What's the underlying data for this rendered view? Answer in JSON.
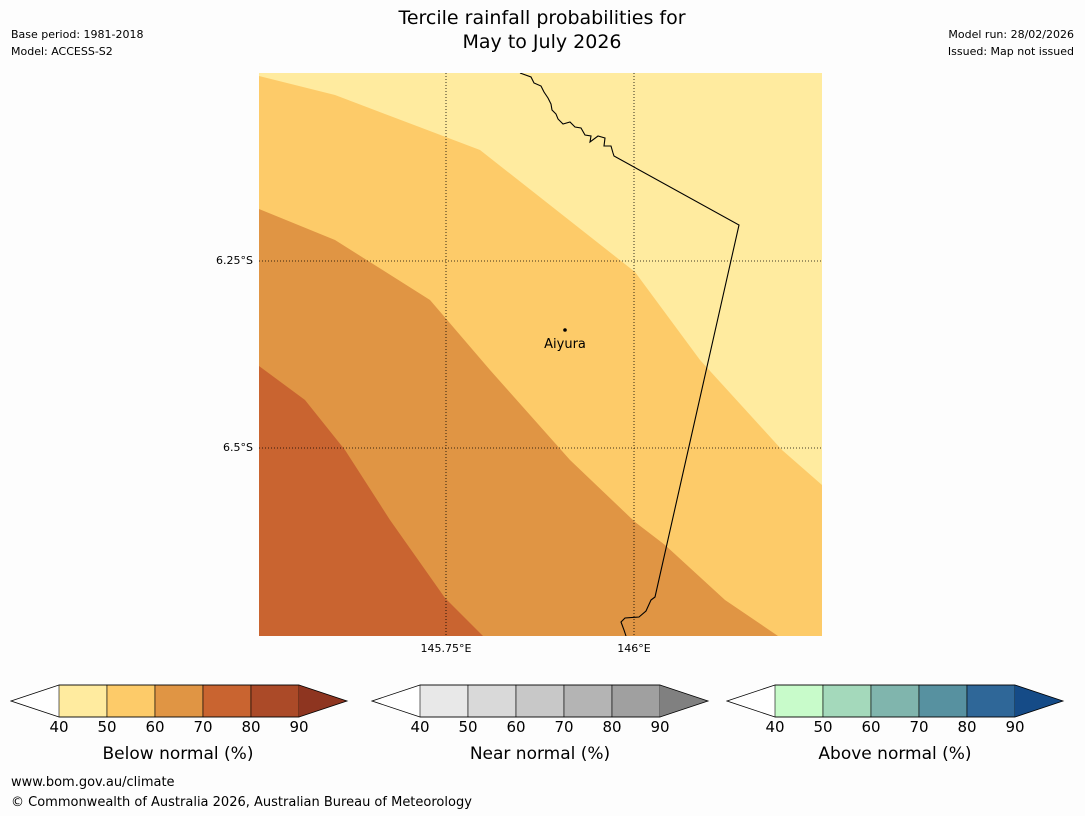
{
  "header": {
    "title_line1": "Tercile rainfall probabilities for",
    "title_line2": "May to July 2026",
    "base_period": "Base period: 1981-2018",
    "model": "Model: ACCESS-S2",
    "model_run": "Model run: 28/02/2026",
    "issued": "Issued: Map not issued"
  },
  "map": {
    "lat_labels": [
      "6.25°S",
      "6.5°S"
    ],
    "lon_labels": [
      "145.75°E",
      "146°E"
    ],
    "place": "Aiyura",
    "band_colors": [
      "#ffeb9f",
      "#fdcb69",
      "#e09544",
      "#c96430"
    ]
  },
  "colorbars": [
    {
      "title": "Below normal (%)",
      "ticks": [
        "40",
        "50",
        "60",
        "70",
        "80",
        "90"
      ],
      "colors": [
        "#ffeb9f",
        "#fdcb69",
        "#e09544",
        "#c96430",
        "#ab4a28"
      ],
      "extend_color": "#8e3520"
    },
    {
      "title": "Near normal (%)",
      "ticks": [
        "40",
        "50",
        "60",
        "70",
        "80",
        "90"
      ],
      "colors": [
        "#e8e8e8",
        "#d9d9d9",
        "#c8c8c8",
        "#b4b4b4",
        "#a0a0a0"
      ],
      "extend_color": "#808080"
    },
    {
      "title": "Above normal (%)",
      "ticks": [
        "40",
        "50",
        "60",
        "70",
        "80",
        "90"
      ],
      "colors": [
        "#c8fbca",
        "#a4d9bb",
        "#80b5ad",
        "#5791a0",
        "#2f6798"
      ],
      "extend_color": "#154b87"
    }
  ],
  "footer": {
    "url": "www.bom.gov.au/climate",
    "copyright": "© Commonwealth of Australia 2026, Australian Bureau of Meteorology"
  }
}
